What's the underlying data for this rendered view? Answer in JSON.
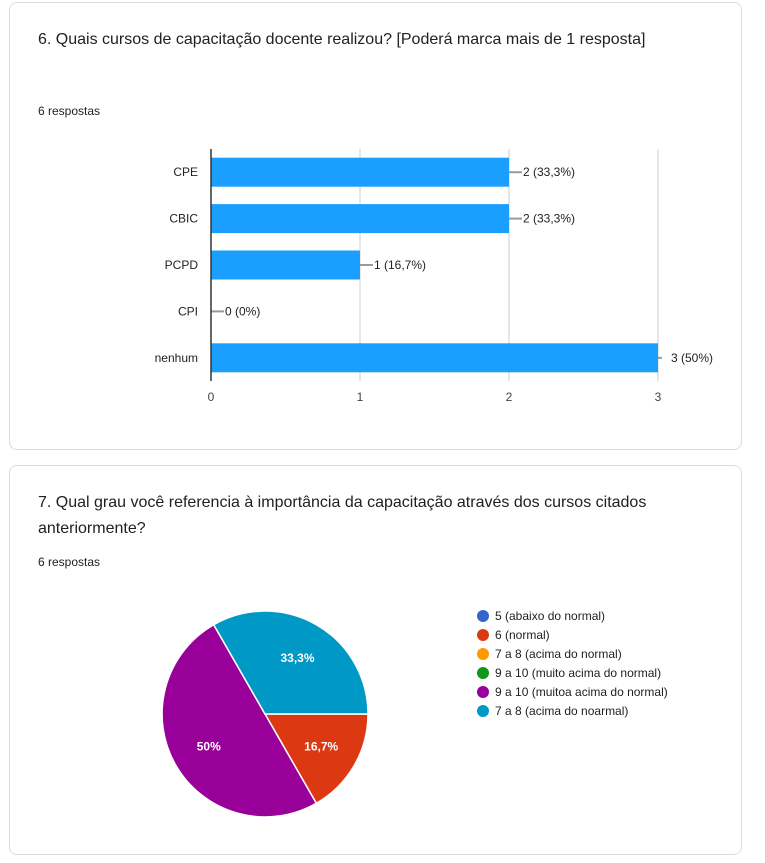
{
  "questions": [
    {
      "title": "6. Quais cursos de capacitação docente realizou? [Poderá marca mais de 1 resposta]",
      "responses": "6 respostas"
    },
    {
      "title": "7. Qual grau você referencia à importância da capacitação através dos cursos citados anteriormente?",
      "responses": "6 respostas"
    }
  ],
  "chart_data": [
    {
      "type": "bar",
      "orientation": "horizontal",
      "categories": [
        "CPE",
        "CBIC",
        "PCPD",
        "CPI",
        "nenhum"
      ],
      "values": [
        2,
        2,
        1,
        0,
        3
      ],
      "value_labels": [
        "2 (33,3%)",
        "2 (33,3%)",
        "1 (16,7%)",
        "0 (0%)",
        "3 (50%)"
      ],
      "xticks": [
        "0",
        "1",
        "2",
        "3"
      ],
      "xlim": [
        0,
        3
      ],
      "color": "#1a9fff",
      "grid": true
    },
    {
      "type": "pie",
      "slices": [
        {
          "label": "5 (abaixo do normal)",
          "value": 0,
          "color": "#3366cc"
        },
        {
          "label": "6 (normal)",
          "value": 16.7,
          "display": "16,7%",
          "color": "#dc3912"
        },
        {
          "label": "7 a 8 (acima do normal)",
          "value": 0,
          "color": "#ff9900"
        },
        {
          "label": "9 a 10 (muito acima do normal)",
          "value": 0,
          "color": "#109618"
        },
        {
          "label": "9 a 10 (muitoa acima do normal)",
          "value": 50,
          "display": "50%",
          "color": "#990099"
        },
        {
          "label": "7 a 8 (acima do noarmal)",
          "value": 33.3,
          "display": "33,3%",
          "color": "#0099c6"
        }
      ],
      "legend_position": "right"
    }
  ]
}
